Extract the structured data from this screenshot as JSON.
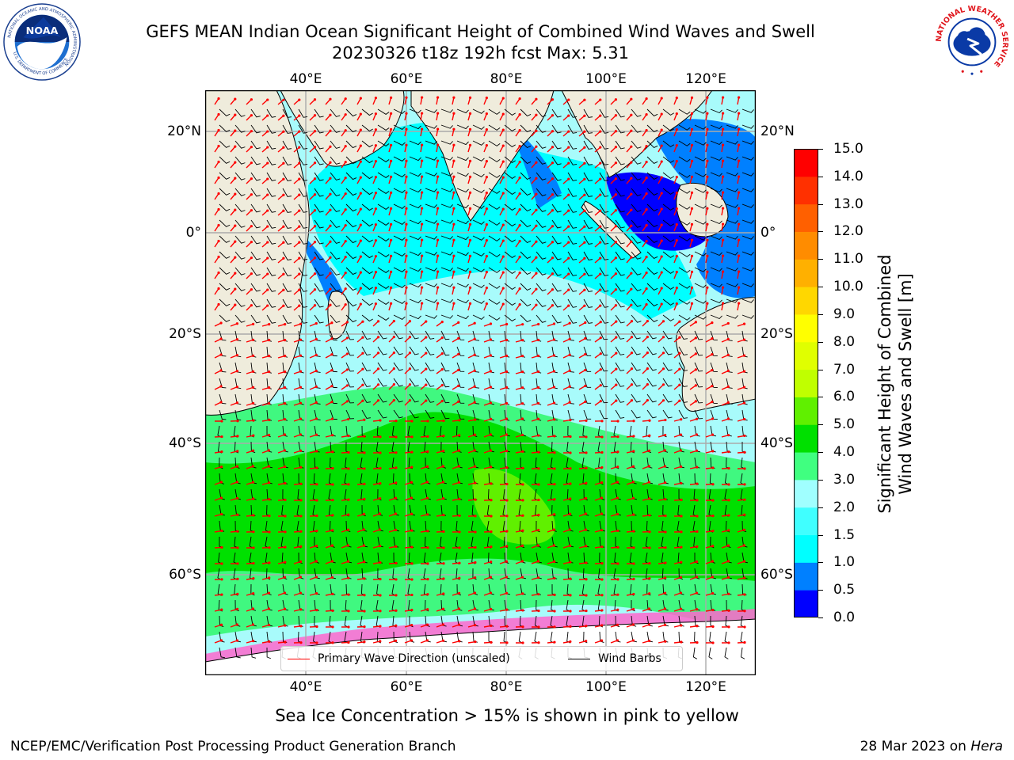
{
  "header": {
    "title": "GEFS MEAN Indian Ocean Significant Height of Combined Wind Waves and Swell",
    "subtitle": "20230326 t18z 192h fcst   Max: 5.31"
  },
  "logos": {
    "left": "noaa-logo",
    "left_text": "NOAA",
    "left_ring_text": "NATIONAL OCEANIC AND ATMOSPHERIC ADMINISTRATION",
    "left_ring_bottom": "U.S. DEPARTMENT OF COMMERCE",
    "right": "nws-logo",
    "right_ring_text": "NATIONAL WEATHER SERVICE"
  },
  "map": {
    "lon_ticks_top": [
      "40°E",
      "60°E",
      "80°E",
      "100°E",
      "120°E"
    ],
    "lon_ticks_bottom": [
      "40°E",
      "60°E",
      "80°E",
      "100°E",
      "120°E"
    ],
    "lat_ticks_left": [
      "20°N",
      "0°",
      "20°S",
      "40°S",
      "60°S"
    ],
    "lat_ticks_right": [
      "20°N",
      "0°",
      "20°S",
      "40°S",
      "60°S"
    ],
    "lon_range": [
      20,
      130
    ],
    "lat_range": [
      -73,
      28
    ],
    "land_color": "#efecdc",
    "grid": true
  },
  "legend": {
    "items": [
      {
        "label": "Primary Wave Direction (unscaled)",
        "color": "#ff0000"
      },
      {
        "label": "Wind Barbs",
        "color": "#000000"
      }
    ]
  },
  "colorbar": {
    "label_line1": "Significant Height of Combined",
    "label_line2": "Wind Waves and Swell [m]",
    "ticks": [
      "0.0",
      "0.5",
      "1.0",
      "1.5",
      "2.0",
      "3.0",
      "4.0",
      "5.0",
      "6.0",
      "7.0",
      "8.0",
      "9.0",
      "10.0",
      "11.0",
      "12.0",
      "13.0",
      "14.0",
      "15.0"
    ],
    "colors": [
      "#0000ff",
      "#0080ff",
      "#00ffff",
      "#40ffff",
      "#a0ffff",
      "#40ff80",
      "#00e000",
      "#60f000",
      "#c0ff00",
      "#e0ff00",
      "#ffff00",
      "#ffd700",
      "#ffb000",
      "#ff8c00",
      "#ff6000",
      "#ff3000",
      "#ff0000"
    ]
  },
  "note": "Sea Ice Concentration > 15% is shown in pink to yellow",
  "footer": {
    "left": "NCEP/EMC/Verification Post Processing Product Generation Branch",
    "date": "28 Mar 2023 on ",
    "host": "Hera"
  }
}
